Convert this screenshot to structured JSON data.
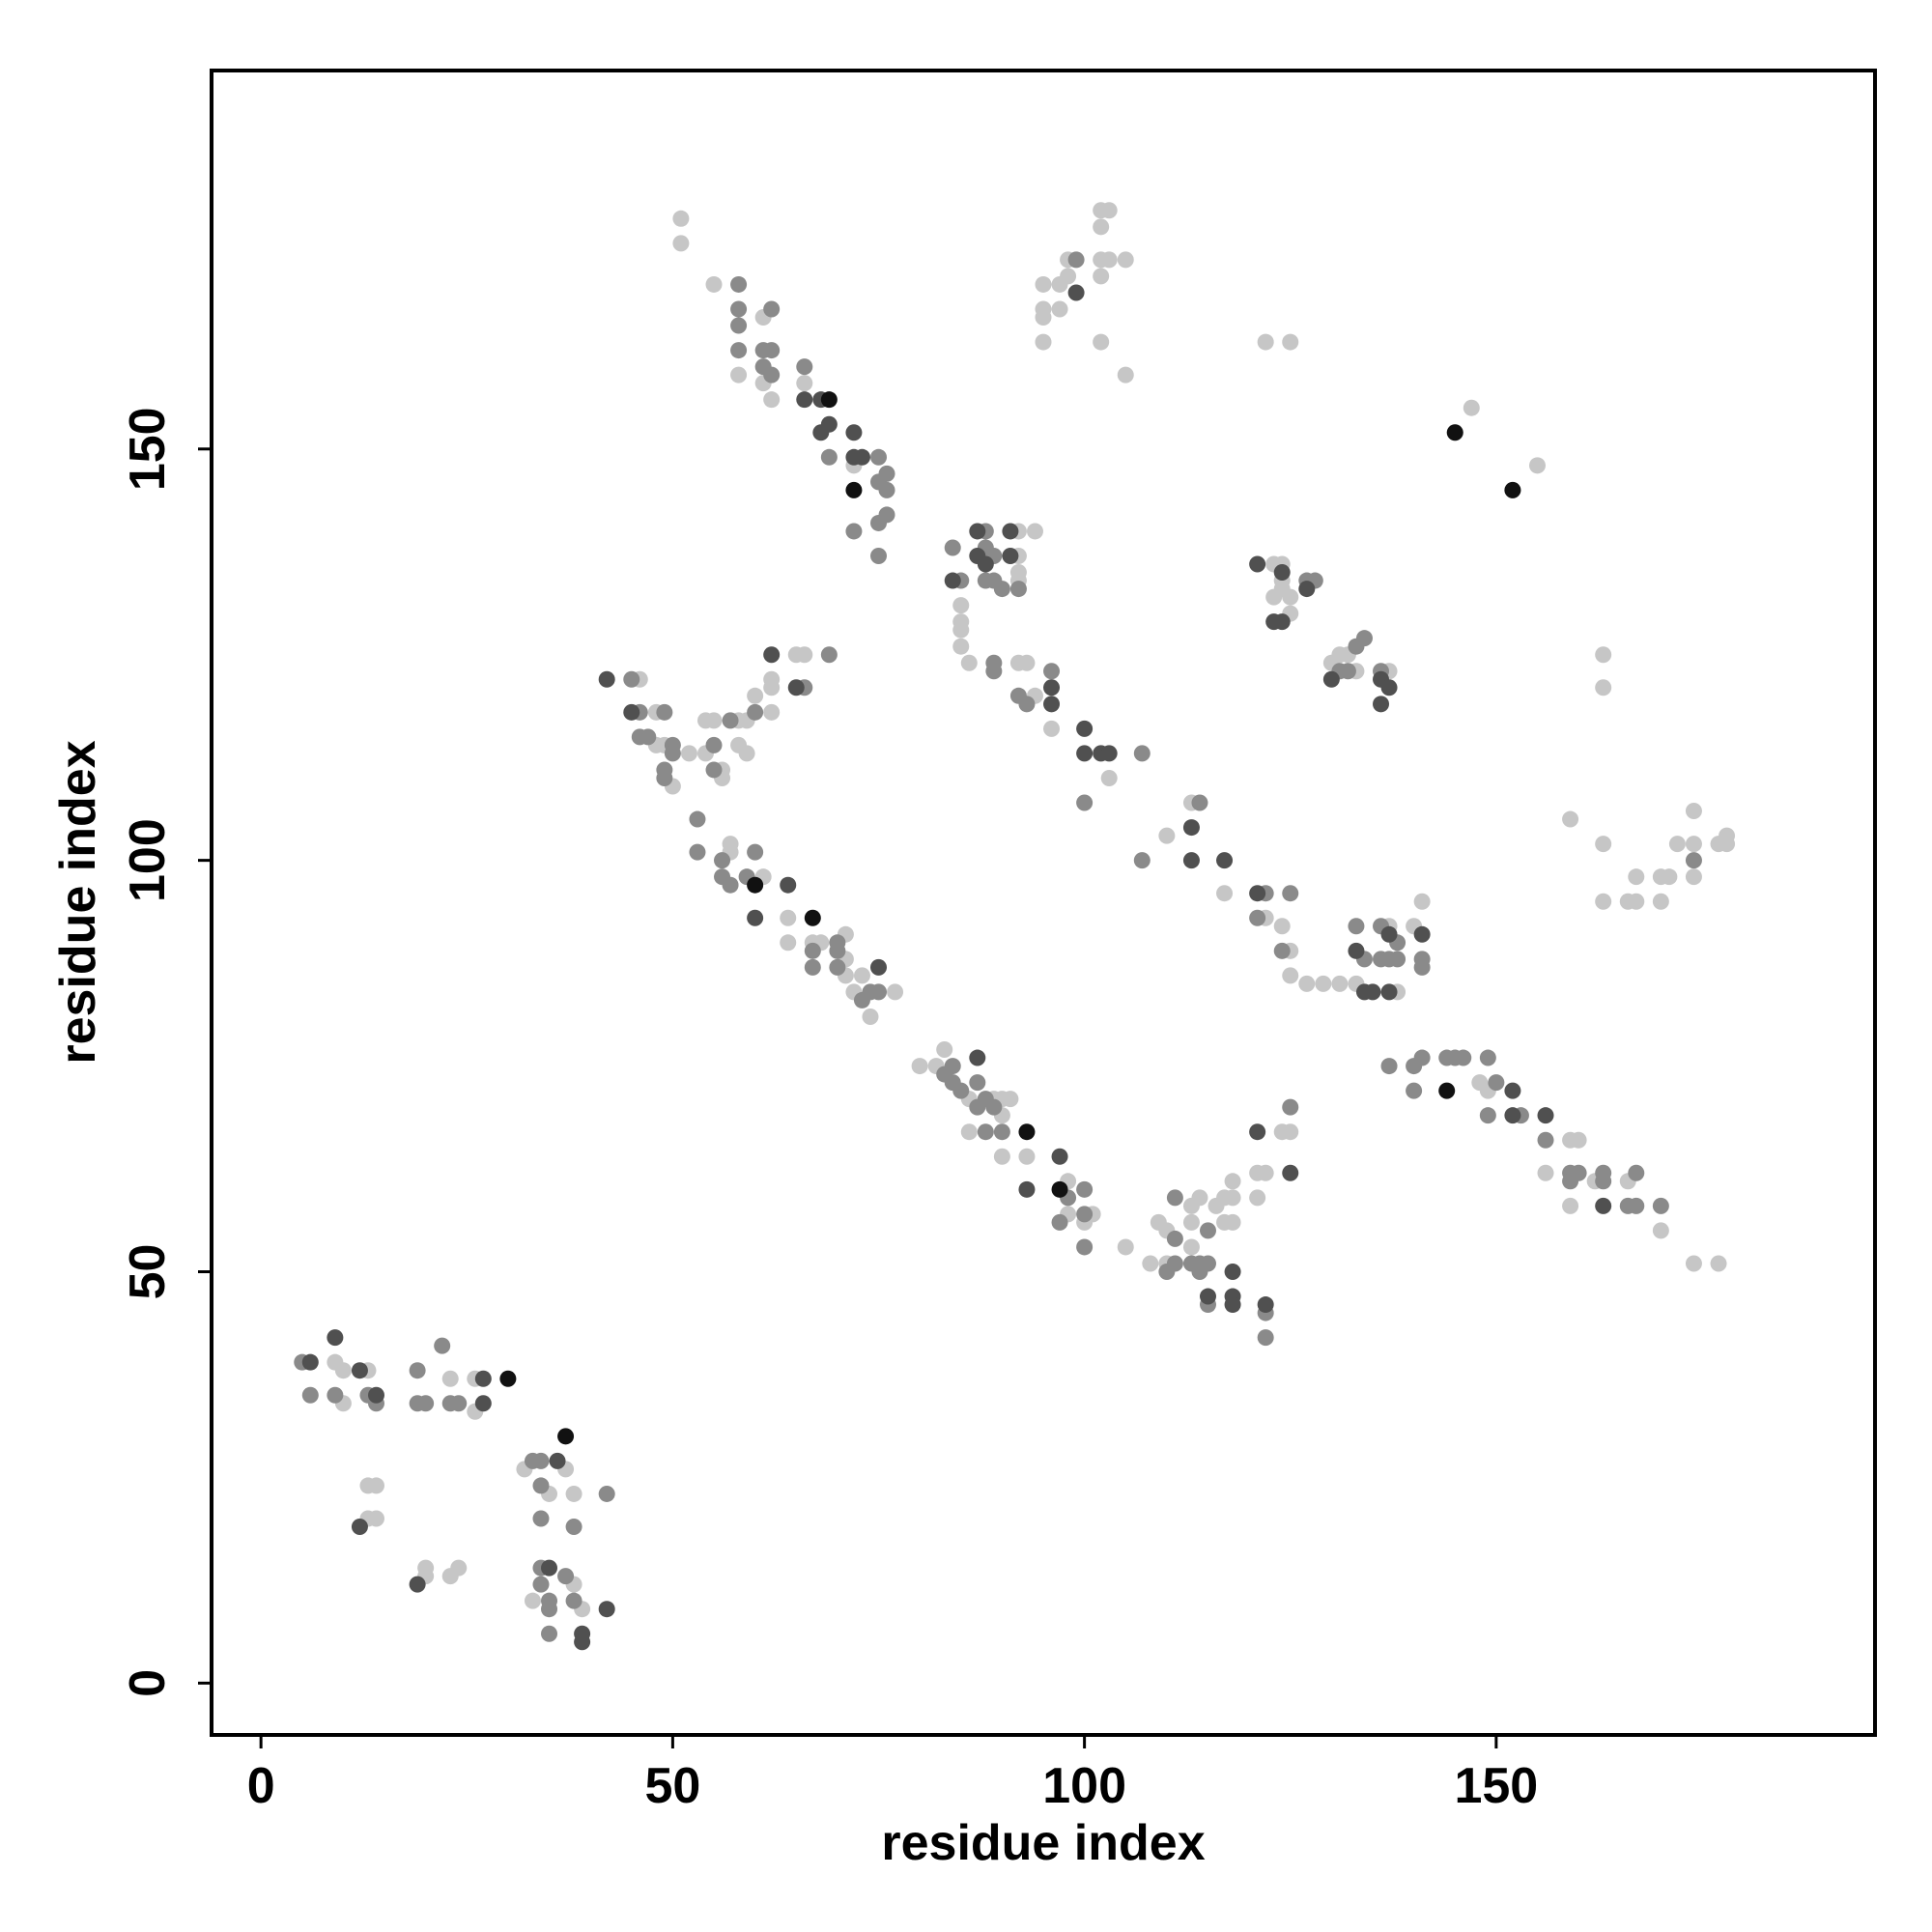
{
  "chart_data": {
    "type": "scatter",
    "xlabel": "residue index",
    "ylabel": "residue index",
    "xlim": [
      -6,
      196
    ],
    "ylim": [
      -6.3,
      196
    ],
    "xticks": [
      0,
      50,
      100,
      150
    ],
    "yticks": [
      0,
      50,
      100,
      150
    ],
    "series": [
      {
        "color": "#c6c6c6",
        "x": [
          9,
          10,
          10,
          13,
          23,
          26,
          26,
          13,
          13,
          14,
          14,
          20,
          20,
          23,
          24,
          32,
          37,
          35,
          38,
          33,
          38,
          39,
          51,
          51,
          55,
          58,
          61,
          61,
          62,
          66,
          72,
          85,
          85,
          85,
          85,
          86,
          92,
          92,
          92,
          92,
          94,
          92,
          93,
          94,
          96,
          103,
          110,
          113,
          117,
          122,
          124,
          125,
          125,
          127,
          129,
          131,
          133,
          137,
          138,
          140,
          141,
          46,
          48,
          48,
          49,
          50,
          52,
          54,
          55,
          54,
          56,
          56,
          58,
          58,
          59,
          59,
          60,
          62,
          62,
          62,
          65,
          66,
          57,
          57,
          61,
          64,
          64,
          67,
          68,
          71,
          71,
          71,
          72,
          73,
          74,
          77,
          80,
          82,
          83,
          86,
          86,
          89,
          90,
          90,
          91,
          90,
          93,
          98,
          98,
          100,
          101,
          105,
          108,
          109,
          110,
          110,
          113,
          114,
          113,
          113,
          117,
          116,
          118,
          118,
          117,
          118,
          121,
          122,
          121,
          124,
          125,
          148,
          149,
          156,
          159,
          160,
          159,
          162,
          166,
          170,
          174,
          177,
          95,
          95,
          95,
          95,
          97,
          97,
          98,
          98,
          102,
          102,
          103,
          102,
          103,
          102,
          105,
          102,
          105,
          122,
          125,
          123,
          124,
          124,
          123,
          124,
          125,
          125,
          130,
          131,
          132,
          133,
          137,
          145,
          147,
          152,
          155,
          163,
          163,
          159,
          163,
          163,
          166,
          167,
          167,
          170,
          170,
          171,
          172,
          174,
          174,
          174,
          177,
          178,
          178
        ],
        "values": [
          39,
          38,
          34,
          38,
          37,
          37,
          33,
          20,
          24,
          24,
          20,
          13,
          14,
          13,
          14,
          26,
          26,
          23,
          23,
          10,
          12,
          9,
          178,
          175,
          170,
          159,
          166,
          158,
          156,
          158,
          148,
          131,
          129,
          128,
          126,
          124,
          140,
          137,
          135,
          134,
          140,
          124,
          124,
          120,
          116,
          110,
          103,
          107,
          96,
          93,
          92,
          89,
          86,
          85,
          85,
          85,
          85,
          92,
          84,
          92,
          95,
          122,
          118,
          114,
          114,
          109,
          113,
          117,
          117,
          113,
          111,
          110,
          117,
          114,
          113,
          117,
          120,
          122,
          121,
          118,
          125,
          125,
          101,
          102,
          98,
          93,
          90,
          90,
          90,
          91,
          88,
          86,
          84,
          86,
          81,
          84,
          75,
          75,
          77,
          71,
          67,
          71,
          71,
          69,
          71,
          64,
          64,
          61,
          57,
          56,
          57,
          53,
          51,
          56,
          55,
          51,
          58,
          59,
          56,
          53,
          59,
          58,
          61,
          59,
          56,
          56,
          62,
          62,
          59,
          67,
          67,
          73,
          72,
          62,
          66,
          66,
          58,
          61,
          61,
          55,
          51,
          51,
          170,
          167,
          166,
          163,
          170,
          167,
          173,
          171,
          177,
          179,
          179,
          173,
          173,
          171,
          173,
          163,
          159,
          163,
          163,
          136,
          136,
          134,
          132,
          133,
          132,
          130,
          124,
          125,
          125,
          123,
          123,
          152,
          155,
          145,
          148,
          125,
          121,
          105,
          102,
          95,
          95,
          95,
          98,
          95,
          98,
          98,
          102,
          106,
          102,
          98,
          102,
          102,
          103
        ]
      },
      {
        "color": "#8a8a8a",
        "x": [
          5,
          9,
          6,
          13,
          14,
          19,
          19,
          20,
          22,
          23,
          24,
          33,
          34,
          34,
          34,
          42,
          38,
          34,
          34,
          35,
          35,
          37,
          38,
          35,
          58,
          58,
          58,
          58,
          62,
          61,
          62,
          61,
          62,
          66,
          69,
          72,
          75,
          75,
          76,
          76,
          75,
          76,
          75,
          84,
          85,
          88,
          88,
          89,
          88,
          89,
          90,
          92,
          89,
          89,
          92,
          93,
          96,
          107,
          100,
          107,
          114,
          122,
          121,
          125,
          124,
          133,
          134,
          136,
          136,
          138,
          137,
          138,
          141,
          141,
          45,
          46,
          46,
          47,
          49,
          50,
          50,
          49,
          49,
          55,
          55,
          57,
          60,
          66,
          69,
          53,
          53,
          56,
          56,
          57,
          59,
          60,
          67,
          67,
          70,
          70,
          70,
          73,
          74,
          75,
          83,
          84,
          84,
          85,
          87,
          87,
          88,
          89,
          88,
          90,
          98,
          97,
          100,
          100,
          100,
          110,
          111,
          111,
          111,
          114,
          114,
          113,
          115,
          115,
          115,
          125,
          122,
          122,
          137,
          140,
          141,
          140,
          144,
          145,
          146,
          149,
          149,
          150,
          153,
          156,
          159,
          160,
          159,
          163,
          163,
          166,
          167,
          167,
          170,
          99,
          127,
          128,
          133,
          134,
          131,
          132,
          136,
          174
        ],
        "values": [
          39,
          35,
          35,
          35,
          34,
          38,
          34,
          34,
          41,
          34,
          34,
          27,
          27,
          24,
          20,
          23,
          19,
          14,
          12,
          10,
          9,
          13,
          10,
          6,
          170,
          167,
          165,
          162,
          167,
          162,
          162,
          160,
          159,
          160,
          149,
          140,
          149,
          146,
          147,
          145,
          141,
          142,
          137,
          138,
          134,
          140,
          138,
          137,
          134,
          134,
          133,
          133,
          124,
          123,
          120,
          119,
          123,
          113,
          107,
          100,
          107,
          96,
          93,
          96,
          89,
          92,
          88,
          92,
          88,
          90,
          88,
          88,
          88,
          87,
          122,
          118,
          115,
          115,
          118,
          114,
          113,
          111,
          110,
          114,
          111,
          117,
          118,
          121,
          125,
          105,
          101,
          100,
          98,
          97,
          98,
          101,
          89,
          87,
          90,
          89,
          87,
          83,
          84,
          84,
          74,
          75,
          73,
          72,
          73,
          70,
          71,
          70,
          67,
          67,
          59,
          56,
          60,
          57,
          53,
          50,
          51,
          54,
          59,
          51,
          50,
          51,
          55,
          51,
          46,
          70,
          45,
          42,
          75,
          75,
          76,
          72,
          76,
          76,
          76,
          76,
          69,
          73,
          69,
          66,
          62,
          62,
          61,
          62,
          61,
          58,
          58,
          62,
          58,
          173,
          134,
          134,
          126,
          127,
          123,
          123,
          123,
          100
        ]
      },
      {
        "color": "#505050",
        "x": [
          6,
          9,
          12,
          14,
          27,
          27,
          12,
          19,
          36,
          35,
          42,
          39,
          39,
          66,
          68,
          68,
          69,
          72,
          72,
          73,
          84,
          87,
          87,
          88,
          91,
          91,
          96,
          96,
          100,
          100,
          102,
          103,
          113,
          113,
          117,
          121,
          134,
          135,
          133,
          137,
          137,
          141,
          42,
          45,
          62,
          65,
          60,
          64,
          75,
          87,
          93,
          97,
          115,
          118,
          118,
          118,
          121,
          125,
          122,
          152,
          152,
          156,
          163,
          99,
          121,
          124,
          123,
          124,
          127,
          136,
          137,
          136,
          130
        ],
        "values": [
          39,
          42,
          38,
          35,
          37,
          34,
          19,
          12,
          27,
          14,
          9,
          6,
          5,
          156,
          156,
          152,
          153,
          152,
          149,
          149,
          134,
          140,
          137,
          136,
          140,
          137,
          121,
          119,
          116,
          113,
          113,
          113,
          104,
          100,
          100,
          96,
          84,
          84,
          89,
          91,
          84,
          91,
          122,
          118,
          125,
          121,
          93,
          97,
          87,
          76,
          60,
          64,
          47,
          50,
          47,
          46,
          67,
          62,
          46,
          72,
          69,
          69,
          58,
          169,
          136,
          135,
          129,
          129,
          133,
          122,
          121,
          119,
          122
        ]
      },
      {
        "color": "#111111",
        "x": [
          30,
          37,
          69,
          72,
          60,
          67,
          93,
          97,
          144,
          145,
          152
        ],
        "values": [
          37,
          30,
          156,
          145,
          97,
          93,
          67,
          60,
          72,
          152,
          145
        ]
      }
    ]
  }
}
